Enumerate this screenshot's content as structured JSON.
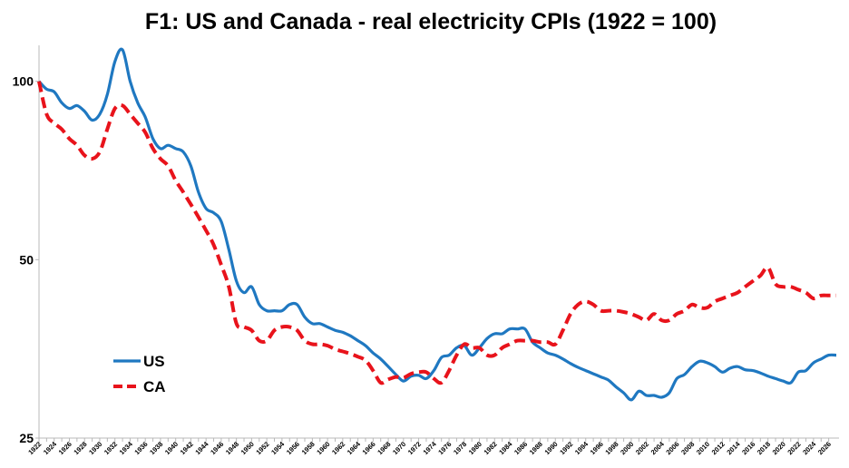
{
  "chart_data": {
    "type": "line",
    "title": "F1: US and Canada - real electricity CPIs (1922 = 100)",
    "xlabel": "",
    "ylabel": "",
    "y_scale": "log",
    "ylim": [
      25,
      115
    ],
    "yticks": [
      25,
      50,
      100
    ],
    "xlim": [
      1922,
      2027
    ],
    "xtick_labels": [
      "1922",
      "1924",
      "1926",
      "1928",
      "1930",
      "1932",
      "1934",
      "1936",
      "1938",
      "1940",
      "1942",
      "1944",
      "1946",
      "1948",
      "1950",
      "1952",
      "1954",
      "1956",
      "1958",
      "1960",
      "1962",
      "1964",
      "1966",
      "1968",
      "1970",
      "1972",
      "1974",
      "1976",
      "1978",
      "1980",
      "1982",
      "1984",
      "1986",
      "1988",
      "1990",
      "1992",
      "1994",
      "1996",
      "1998",
      "2000",
      "2002",
      "2004",
      "2006",
      "2008",
      "2010",
      "2012",
      "2014",
      "2016",
      "2018",
      "2020",
      "2022",
      "2024",
      "2026"
    ],
    "legend_position": "lower-left",
    "grid": false,
    "series": [
      {
        "name": "US",
        "color": "#1f78c1",
        "style": "solid",
        "x": [
          1922,
          1923,
          1924,
          1925,
          1926,
          1927,
          1928,
          1929,
          1930,
          1931,
          1932,
          1933,
          1934,
          1935,
          1936,
          1937,
          1938,
          1939,
          1940,
          1941,
          1942,
          1943,
          1944,
          1945,
          1946,
          1947,
          1948,
          1949,
          1950,
          1951,
          1952,
          1953,
          1954,
          1955,
          1956,
          1957,
          1958,
          1959,
          1960,
          1961,
          1962,
          1963,
          1964,
          1965,
          1966,
          1967,
          1968,
          1969,
          1970,
          1971,
          1972,
          1973,
          1974,
          1975,
          1976,
          1977,
          1978,
          1979,
          1980,
          1981,
          1982,
          1983,
          1984,
          1985,
          1986,
          1987,
          1988,
          1989,
          1990,
          1991,
          1992,
          1993,
          1994,
          1995,
          1996,
          1997,
          1998,
          1999,
          2000,
          2001,
          2002,
          2003,
          2004,
          2005,
          2006,
          2007,
          2008,
          2009,
          2010,
          2011,
          2012,
          2013,
          2014,
          2015,
          2016,
          2017,
          2018,
          2019,
          2020,
          2021,
          2022,
          2023,
          2024,
          2025,
          2026,
          2027
        ],
        "values": [
          100,
          97,
          96,
          92,
          90,
          91,
          89,
          86,
          88,
          95,
          108,
          113,
          100,
          92,
          87,
          80,
          77,
          78,
          77,
          76,
          72,
          65,
          61,
          60,
          58,
          52,
          46,
          44,
          45,
          42,
          41,
          41,
          41,
          42,
          42,
          40,
          39,
          39,
          38.5,
          38,
          37.7,
          37.2,
          36.5,
          35.8,
          34.8,
          34,
          33,
          32,
          31.2,
          31.8,
          31.9,
          31.5,
          32.5,
          34.2,
          34.5,
          35.5,
          35.8,
          34.5,
          35.5,
          36.8,
          37.5,
          37.5,
          38.2,
          38.2,
          38.2,
          36.3,
          35.5,
          34.8,
          34.5,
          34,
          33.4,
          32.9,
          32.5,
          32.1,
          31.7,
          31.3,
          30.5,
          29.8,
          29,
          30,
          29.5,
          29.5,
          29.3,
          29.8,
          31.5,
          32,
          33,
          33.7,
          33.5,
          33,
          32.3,
          32.8,
          33,
          32.6,
          32.5,
          32.2,
          31.8,
          31.5,
          31.2,
          31,
          32.3,
          32.5,
          33.5,
          34,
          34.5,
          34.5
        ]
      },
      {
        "name": "CA",
        "color": "#e8131b",
        "style": "dashed",
        "x": [
          1922,
          1923,
          1924,
          1925,
          1926,
          1927,
          1928,
          1929,
          1930,
          1931,
          1932,
          1933,
          1934,
          1935,
          1936,
          1937,
          1938,
          1939,
          1940,
          1941,
          1942,
          1943,
          1944,
          1945,
          1946,
          1947,
          1948,
          1949,
          1950,
          1951,
          1952,
          1953,
          1954,
          1955,
          1956,
          1957,
          1958,
          1959,
          1960,
          1961,
          1962,
          1963,
          1964,
          1965,
          1966,
          1967,
          1968,
          1969,
          1970,
          1971,
          1972,
          1973,
          1974,
          1975,
          1976,
          1977,
          1978,
          1979,
          1980,
          1981,
          1982,
          1983,
          1984,
          1985,
          1986,
          1987,
          1988,
          1989,
          1990,
          1991,
          1992,
          1993,
          1994,
          1995,
          1996,
          1997,
          1998,
          1999,
          2000,
          2001,
          2002,
          2003,
          2004,
          2005,
          2006,
          2007,
          2008,
          2009,
          2010,
          2011,
          2012,
          2013,
          2014,
          2015,
          2016,
          2017,
          2018,
          2019,
          2020,
          2021,
          2022,
          2023,
          2024,
          2025,
          2026,
          2027
        ],
        "values": [
          100,
          88,
          85,
          83,
          80,
          78,
          75,
          74,
          76,
          83,
          90,
          91,
          88,
          85,
          82,
          77,
          74,
          72,
          68,
          65,
          62,
          59,
          56,
          53,
          49,
          45,
          39,
          38.5,
          38,
          36.5,
          36.5,
          38,
          38.5,
          38.5,
          38,
          36.5,
          36,
          36,
          35.8,
          35.3,
          35,
          34.7,
          34.3,
          33.8,
          32.5,
          31,
          31.4,
          31.7,
          31.6,
          32.1,
          32.3,
          32.3,
          31.5,
          31,
          32.5,
          34.5,
          36,
          35.5,
          35.5,
          34.5,
          34.5,
          35.5,
          36,
          36.5,
          36.5,
          36.5,
          36.3,
          36.3,
          36,
          38,
          40.5,
          42,
          42.5,
          42,
          41,
          41,
          41,
          40.8,
          40.5,
          40,
          39.5,
          40.5,
          39.5,
          39.5,
          40.5,
          41,
          42,
          41.5,
          41.5,
          42.5,
          43,
          43.5,
          44,
          45,
          46,
          47,
          48.5,
          45.5,
          45,
          45,
          44.5,
          44,
          43,
          43.5,
          43.5,
          43.5
        ]
      }
    ]
  }
}
